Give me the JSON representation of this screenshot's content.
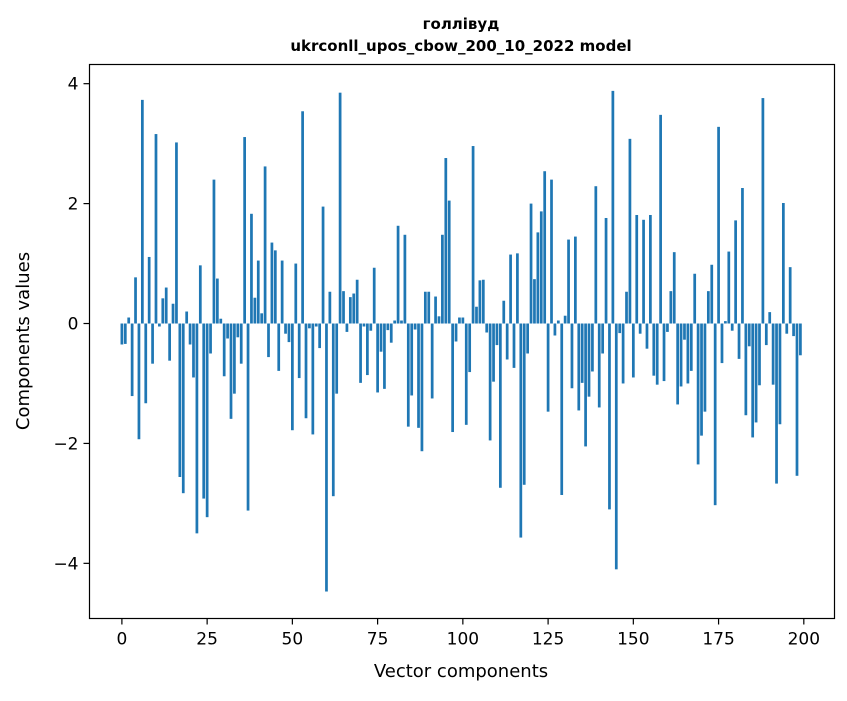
{
  "chart_data": {
    "type": "bar",
    "title": "голлівуд",
    "subtitle": "ukrconll_upos_cbow_200_10_2022 model",
    "xlabel": "Vector components",
    "ylabel": "Components values",
    "xlim": [
      -9.5,
      209
    ],
    "ylim": [
      -4.92,
      4.32
    ],
    "xticks": [
      0,
      25,
      50,
      75,
      100,
      125,
      150,
      175,
      200
    ],
    "yticks": [
      -4,
      -2,
      0,
      2,
      4
    ],
    "xtick_labels": [
      "0",
      "25",
      "50",
      "75",
      "100",
      "125",
      "150",
      "175",
      "200"
    ],
    "ytick_labels": [
      "−4",
      "−2",
      "0",
      "2",
      "4"
    ],
    "grid": false,
    "bar_color": "#1f77b4",
    "x": [
      0,
      1,
      2,
      3,
      4,
      5,
      6,
      7,
      8,
      9,
      10,
      11,
      12,
      13,
      14,
      15,
      16,
      17,
      18,
      19,
      20,
      21,
      22,
      23,
      24,
      25,
      26,
      27,
      28,
      29,
      30,
      31,
      32,
      33,
      34,
      35,
      36,
      37,
      38,
      39,
      40,
      41,
      42,
      43,
      44,
      45,
      46,
      47,
      48,
      49,
      50,
      51,
      52,
      53,
      54,
      55,
      56,
      57,
      58,
      59,
      60,
      61,
      62,
      63,
      64,
      65,
      66,
      67,
      68,
      69,
      70,
      71,
      72,
      73,
      74,
      75,
      76,
      77,
      78,
      79,
      80,
      81,
      82,
      83,
      84,
      85,
      86,
      87,
      88,
      89,
      90,
      91,
      92,
      93,
      94,
      95,
      96,
      97,
      98,
      99,
      100,
      101,
      102,
      103,
      104,
      105,
      106,
      107,
      108,
      109,
      110,
      111,
      112,
      113,
      114,
      115,
      116,
      117,
      118,
      119,
      120,
      121,
      122,
      123,
      124,
      125,
      126,
      127,
      128,
      129,
      130,
      131,
      132,
      133,
      134,
      135,
      136,
      137,
      138,
      139,
      140,
      141,
      142,
      143,
      144,
      145,
      146,
      147,
      148,
      149,
      150,
      151,
      152,
      153,
      154,
      155,
      156,
      157,
      158,
      159,
      160,
      161,
      162,
      163,
      164,
      165,
      166,
      167,
      168,
      169,
      170,
      171,
      172,
      173,
      174,
      175,
      176,
      177,
      178,
      179,
      180,
      181,
      182,
      183,
      184,
      185,
      186,
      187,
      188,
      189,
      190,
      191,
      192,
      193,
      194,
      195,
      196,
      197,
      198,
      199
    ],
    "values": [
      -0.35,
      -0.34,
      0.1,
      -1.21,
      0.77,
      -1.93,
      3.73,
      -1.33,
      1.11,
      -0.67,
      3.16,
      -0.05,
      0.42,
      0.6,
      -0.62,
      0.33,
      3.02,
      -2.56,
      -2.83,
      0.2,
      -0.35,
      -0.9,
      -3.5,
      0.97,
      -2.92,
      -3.23,
      -0.5,
      2.4,
      0.75,
      0.08,
      -0.88,
      -0.25,
      -1.59,
      -1.17,
      -0.23,
      -0.67,
      3.11,
      -3.12,
      1.83,
      0.43,
      1.05,
      0.17,
      2.62,
      -0.56,
      1.35,
      1.22,
      -0.79,
      1.05,
      -0.17,
      -0.31,
      -1.78,
      1.0,
      -0.91,
      3.54,
      -1.58,
      -0.08,
      -1.85,
      -0.05,
      -0.41,
      1.95,
      -4.47,
      0.53,
      -2.88,
      -1.17,
      3.85,
      0.54,
      -0.14,
      0.44,
      0.5,
      0.73,
      -0.99,
      -0.05,
      -0.86,
      -0.12,
      0.93,
      -1.15,
      -0.47,
      -1.09,
      -0.11,
      -0.32,
      0.05,
      1.63,
      0.05,
      1.48,
      -1.72,
      -1.2,
      -0.1,
      -1.74,
      -2.13,
      0.53,
      0.53,
      -1.25,
      0.45,
      0.12,
      1.48,
      2.76,
      2.05,
      -1.81,
      -0.3,
      0.1,
      0.1,
      -1.69,
      -0.81,
      2.96,
      0.28,
      0.72,
      0.73,
      -0.15,
      -1.95,
      -0.97,
      -0.36,
      -2.74,
      0.38,
      -0.6,
      1.15,
      -0.74,
      1.17,
      -3.57,
      -2.69,
      -0.5,
      2.0,
      0.74,
      1.52,
      1.87,
      2.54,
      -1.47,
      2.4,
      -0.2,
      0.05,
      -2.86,
      0.13,
      1.4,
      -1.08,
      1.45,
      -1.45,
      -0.99,
      -2.05,
      -1.22,
      -0.8,
      2.29,
      -1.4,
      -0.5,
      1.76,
      -3.1,
      3.88,
      -4.1,
      -0.16,
      -1.0,
      0.53,
      3.08,
      -0.9,
      1.81,
      -0.17,
      1.73,
      -0.42,
      1.81,
      -0.87,
      -1.02,
      3.48,
      -0.96,
      -0.14,
      0.54,
      1.19,
      -1.35,
      -1.05,
      -0.27,
      -1.0,
      -0.79,
      0.83,
      -2.35,
      -1.87,
      -1.47,
      0.54,
      0.98,
      -3.03,
      3.28,
      -0.66,
      0.04,
      1.2,
      -0.12,
      1.72,
      -0.59,
      2.26,
      -1.53,
      -0.38,
      -1.9,
      -1.65,
      -1.03,
      3.76,
      -0.36,
      0.19,
      -1.02,
      -2.67,
      -1.68,
      2.01,
      -0.17,
      0.94,
      -0.21,
      -2.54,
      -0.53
    ]
  }
}
